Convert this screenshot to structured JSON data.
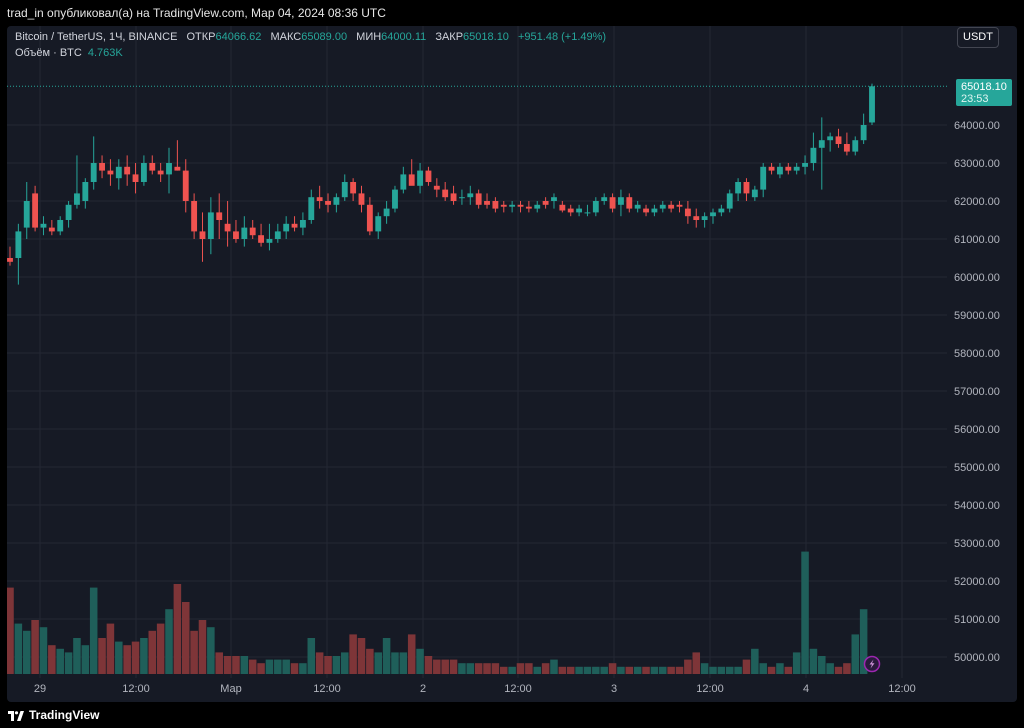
{
  "header": {
    "publisher_text": "trad_in опубликовал(а) на TradingView.com, Мар 04, 2024 08:36 UTC"
  },
  "legend": {
    "symbol": "Bitcoin / TetherUS, 1Ч, BINANCE",
    "open_label": "ОТКР",
    "open": "64066.62",
    "high_label": "МАКС",
    "high": "65089.00",
    "low_label": "МИН",
    "low": "64000.11",
    "close_label": "ЗАКР",
    "close": "65018.10",
    "change": "+951.48 (+1.49%)",
    "volume_label": "Объём · BTC",
    "volume": "4.763K"
  },
  "currency_button": "USDT",
  "last_price": {
    "price": "65018.10",
    "countdown": "23:53"
  },
  "footer": {
    "brand": "TradingView"
  },
  "colors": {
    "up": "#26a69a",
    "down": "#ef5350",
    "vol_up": "#1f5f5a",
    "vol_down": "#7e3538",
    "background": "#161a25",
    "grid": "#242833"
  },
  "chart_data": {
    "type": "candlestick",
    "price_axis_ticks": [
      "50000.00",
      "51000.00",
      "52000.00",
      "53000.00",
      "54000.00",
      "55000.00",
      "56000.00",
      "57000.00",
      "58000.00",
      "59000.00",
      "60000.00",
      "61000.00",
      "62000.00",
      "63000.00",
      "64000.00"
    ],
    "time_axis_ticks": [
      "29",
      "12:00",
      "Мар",
      "12:00",
      "2",
      "12:00",
      "3",
      "12:00",
      "4",
      "12:00"
    ],
    "ylim_visible": [
      49600,
      65900
    ],
    "grid": true,
    "candles_ohlc": [
      [
        60500,
        60800,
        60300,
        60400
      ],
      [
        60500,
        61400,
        59800,
        61200
      ],
      [
        61300,
        62500,
        61000,
        62000
      ],
      [
        62200,
        62400,
        61200,
        61300
      ],
      [
        61300,
        61600,
        61100,
        61400
      ],
      [
        61300,
        61500,
        61100,
        61200
      ],
      [
        61200,
        61600,
        61100,
        61500
      ],
      [
        61500,
        62000,
        61300,
        61900
      ],
      [
        61900,
        63200,
        61800,
        62200
      ],
      [
        62000,
        62600,
        61800,
        62500
      ],
      [
        62500,
        63700,
        62300,
        63000
      ],
      [
        63000,
        63200,
        62600,
        62800
      ],
      [
        62800,
        63100,
        62400,
        62700
      ],
      [
        62600,
        63100,
        62300,
        62900
      ],
      [
        62900,
        63200,
        62400,
        62700
      ],
      [
        62700,
        63000,
        62200,
        62500
      ],
      [
        62500,
        63200,
        62400,
        63000
      ],
      [
        63000,
        63200,
        62700,
        62800
      ],
      [
        62800,
        63000,
        62500,
        62700
      ],
      [
        62700,
        63400,
        62200,
        63000
      ],
      [
        62900,
        63600,
        62800,
        62800
      ],
      [
        62800,
        63100,
        61700,
        62000
      ],
      [
        62000,
        62200,
        61000,
        61200
      ],
      [
        61200,
        61700,
        60400,
        61000
      ],
      [
        61000,
        62100,
        60600,
        61700
      ],
      [
        61700,
        62200,
        61000,
        61500
      ],
      [
        61400,
        62000,
        60800,
        61200
      ],
      [
        61200,
        61500,
        60900,
        61000
      ],
      [
        61000,
        61600,
        60800,
        61300
      ],
      [
        61300,
        61500,
        61000,
        61100
      ],
      [
        61100,
        61400,
        60800,
        60900
      ],
      [
        60900,
        61400,
        60700,
        61000
      ],
      [
        61000,
        61400,
        60900,
        61200
      ],
      [
        61200,
        61600,
        61000,
        61400
      ],
      [
        61400,
        61600,
        61200,
        61300
      ],
      [
        61300,
        61700,
        61100,
        61500
      ],
      [
        61500,
        62300,
        61400,
        62100
      ],
      [
        62100,
        62400,
        61800,
        62000
      ],
      [
        62000,
        62200,
        61700,
        61900
      ],
      [
        61900,
        62200,
        61700,
        62100
      ],
      [
        62100,
        62700,
        62000,
        62500
      ],
      [
        62500,
        62600,
        62000,
        62200
      ],
      [
        62200,
        62400,
        61700,
        61900
      ],
      [
        61900,
        62100,
        61100,
        61200
      ],
      [
        61200,
        61700,
        61000,
        61600
      ],
      [
        61600,
        62000,
        61400,
        61800
      ],
      [
        61800,
        62400,
        61700,
        62300
      ],
      [
        62300,
        62900,
        62200,
        62700
      ],
      [
        62700,
        63100,
        62500,
        62400
      ],
      [
        62400,
        63000,
        62200,
        62800
      ],
      [
        62800,
        62900,
        62400,
        62500
      ],
      [
        62400,
        62600,
        62100,
        62300
      ],
      [
        62300,
        62500,
        62000,
        62100
      ],
      [
        62200,
        62400,
        61900,
        62000
      ],
      [
        62100,
        62300,
        61900,
        62100
      ],
      [
        62100,
        62400,
        61900,
        62200
      ],
      [
        62200,
        62300,
        61800,
        61900
      ],
      [
        62000,
        62200,
        61800,
        61900
      ],
      [
        62000,
        62100,
        61700,
        61800
      ],
      [
        61900,
        62000,
        61700,
        61850
      ],
      [
        61850,
        62000,
        61700,
        61900
      ],
      [
        61900,
        62000,
        61700,
        61850
      ],
      [
        61850,
        62000,
        61700,
        61800
      ],
      [
        61800,
        62000,
        61700,
        61900
      ],
      [
        62000,
        62100,
        61800,
        61900
      ],
      [
        62000,
        62200,
        61800,
        62100
      ],
      [
        61900,
        62000,
        61700,
        61750
      ],
      [
        61800,
        61900,
        61600,
        61700
      ],
      [
        61700,
        61900,
        61600,
        61800
      ],
      [
        61700,
        61900,
        61600,
        61700
      ],
      [
        61700,
        62100,
        61600,
        62000
      ],
      [
        62000,
        62200,
        61900,
        62100
      ],
      [
        62100,
        62200,
        61700,
        61800
      ],
      [
        61900,
        62300,
        61600,
        62100
      ],
      [
        62100,
        62200,
        61700,
        61800
      ],
      [
        61800,
        62000,
        61700,
        61900
      ],
      [
        61800,
        61900,
        61600,
        61700
      ],
      [
        61700,
        61900,
        61600,
        61800
      ],
      [
        61800,
        62000,
        61700,
        61900
      ],
      [
        61900,
        62000,
        61700,
        61800
      ],
      [
        61900,
        62000,
        61700,
        61850
      ],
      [
        61800,
        62000,
        61400,
        61600
      ],
      [
        61600,
        61800,
        61300,
        61500
      ],
      [
        61500,
        61700,
        61300,
        61600
      ],
      [
        61600,
        61800,
        61400,
        61700
      ],
      [
        61700,
        61900,
        61600,
        61800
      ],
      [
        61800,
        62300,
        61700,
        62200
      ],
      [
        62200,
        62600,
        62000,
        62500
      ],
      [
        62500,
        62600,
        62000,
        62200
      ],
      [
        62100,
        62400,
        62000,
        62300
      ],
      [
        62300,
        63000,
        62100,
        62900
      ],
      [
        62900,
        63000,
        62700,
        62800
      ],
      [
        62700,
        63000,
        62600,
        62900
      ],
      [
        62900,
        63000,
        62700,
        62800
      ],
      [
        62800,
        63000,
        62700,
        62900
      ],
      [
        62900,
        63200,
        62700,
        63000
      ],
      [
        63000,
        63800,
        62800,
        63400
      ],
      [
        63400,
        64200,
        62300,
        63600
      ],
      [
        63600,
        63800,
        63300,
        63700
      ],
      [
        63700,
        63900,
        63400,
        63500
      ],
      [
        63500,
        63800,
        63200,
        63300
      ],
      [
        63300,
        63700,
        63200,
        63600
      ],
      [
        63600,
        64300,
        63500,
        64000
      ],
      [
        64066.62,
        65089.0,
        64000.11,
        65018.1
      ]
    ],
    "volume_relative": [
      2.4,
      1.4,
      1.2,
      1.5,
      1.3,
      0.8,
      0.7,
      0.6,
      1.0,
      0.8,
      2.4,
      1.0,
      1.4,
      0.9,
      0.8,
      0.9,
      1.0,
      1.2,
      1.4,
      1.8,
      2.5,
      2.0,
      1.2,
      1.5,
      1.3,
      0.6,
      0.5,
      0.5,
      0.5,
      0.4,
      0.3,
      0.4,
      0.4,
      0.4,
      0.3,
      0.3,
      1.0,
      0.6,
      0.5,
      0.5,
      0.6,
      1.1,
      1.0,
      0.7,
      0.6,
      1.0,
      0.6,
      0.6,
      1.1,
      0.7,
      0.5,
      0.4,
      0.4,
      0.4,
      0.3,
      0.3,
      0.3,
      0.3,
      0.3,
      0.2,
      0.2,
      0.3,
      0.3,
      0.2,
      0.3,
      0.4,
      0.2,
      0.2,
      0.2,
      0.2,
      0.2,
      0.2,
      0.3,
      0.2,
      0.2,
      0.2,
      0.2,
      0.2,
      0.2,
      0.2,
      0.2,
      0.4,
      0.6,
      0.3,
      0.2,
      0.2,
      0.2,
      0.2,
      0.4,
      0.7,
      0.3,
      0.2,
      0.3,
      0.2,
      0.6,
      3.4,
      0.7,
      0.5,
      0.3,
      0.2,
      0.3,
      1.1,
      1.8
    ]
  }
}
